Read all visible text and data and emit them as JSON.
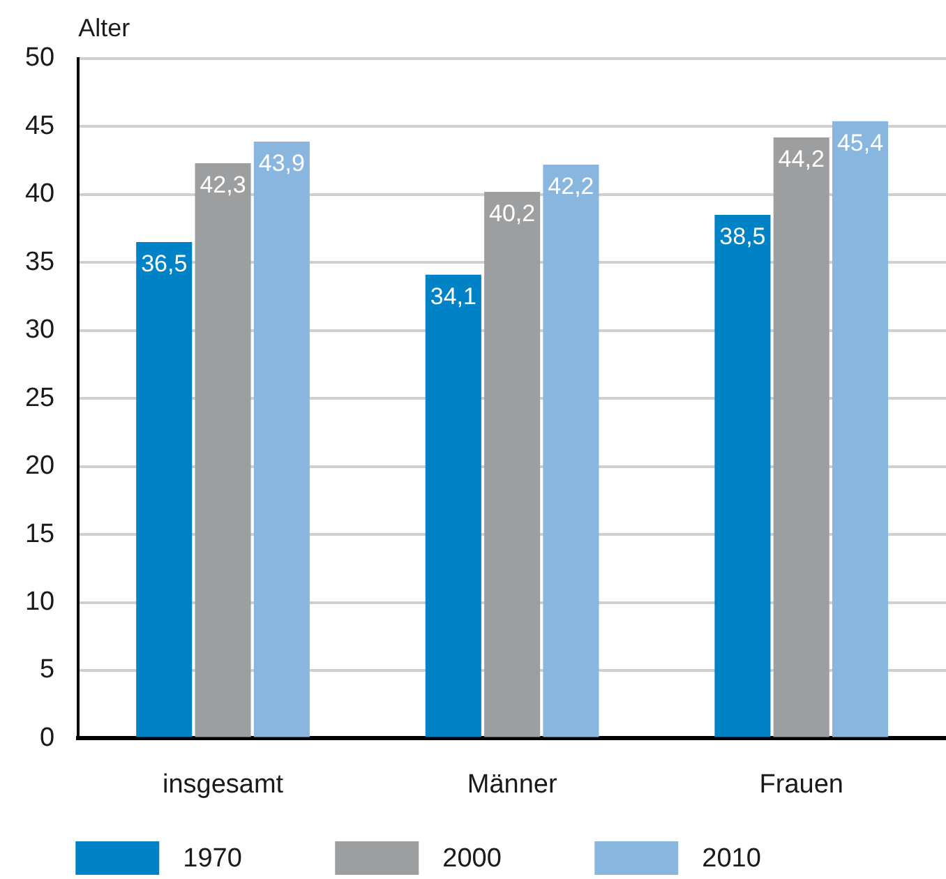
{
  "chart_data": {
    "type": "bar",
    "ylabel": "Alter",
    "categories": [
      "insgesamt",
      "Männer",
      "Frauen"
    ],
    "series": [
      {
        "name": "1970",
        "color": "#0083c6",
        "values": [
          36.5,
          34.1,
          38.5
        ],
        "value_labels": [
          "36,5",
          "34,1",
          "38,5"
        ]
      },
      {
        "name": "2000",
        "color": "#9d9ea0",
        "values": [
          42.3,
          40.2,
          44.2
        ],
        "value_labels": [
          "42,3",
          "40,2",
          "44,2"
        ]
      },
      {
        "name": "2010",
        "color": "#88b6df",
        "values": [
          43.9,
          42.2,
          45.4
        ],
        "value_labels": [
          "43,9",
          "42,2",
          "45,4"
        ]
      }
    ],
    "ylim": [
      0,
      50
    ],
    "yticks": [
      0,
      5,
      10,
      15,
      20,
      25,
      30,
      35,
      40,
      45,
      50
    ],
    "grid": "y",
    "legend": "bottom left"
  }
}
